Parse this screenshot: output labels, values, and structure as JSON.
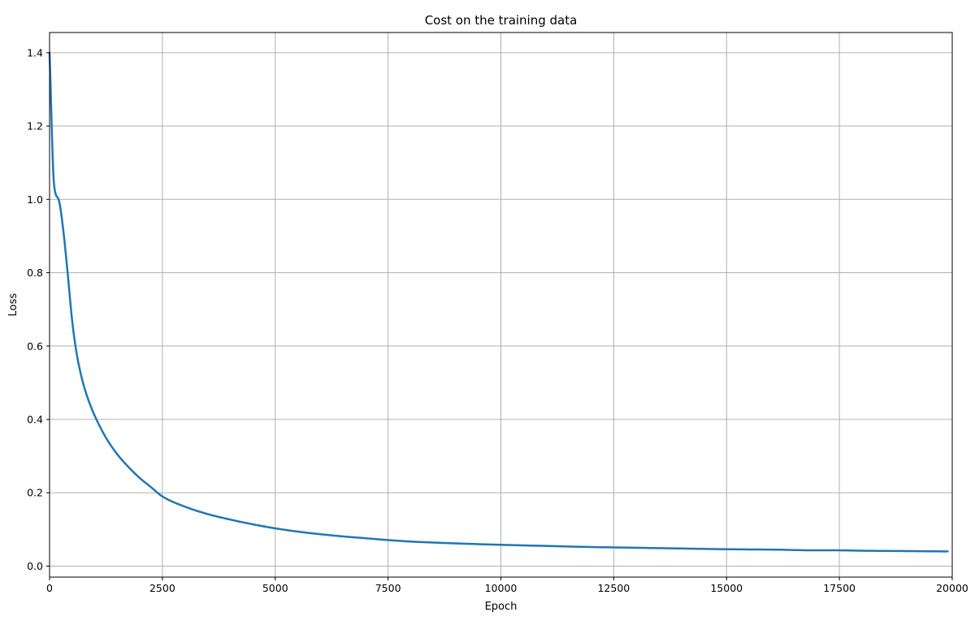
{
  "chart_data": {
    "type": "line",
    "title": "Cost on the training data",
    "xlabel": "Epoch",
    "ylabel": "Loss",
    "xlim": [
      0,
      20000
    ],
    "ylim": [
      -0.03,
      1.455
    ],
    "x_ticks": [
      0,
      2500,
      5000,
      7500,
      10000,
      12500,
      15000,
      17500,
      20000
    ],
    "x_tick_labels": [
      "0",
      "2500",
      "5000",
      "7500",
      "10000",
      "12500",
      "15000",
      "17500",
      "20000"
    ],
    "y_ticks": [
      0.0,
      0.2,
      0.4,
      0.6,
      0.8,
      1.0,
      1.2,
      1.4
    ],
    "y_tick_labels": [
      "0.0",
      "0.2",
      "0.4",
      "0.6",
      "0.8",
      "1.0",
      "1.2",
      "1.4"
    ],
    "grid": true,
    "line_color": "#1f77b4",
    "grid_color": "#b0b0b0",
    "series": [
      {
        "x": [
          0,
          100,
          200,
          300,
          400,
          500,
          600,
          700,
          800,
          900,
          1000,
          1250,
          1500,
          1750,
          2000,
          2250,
          2500,
          3000,
          3500,
          4000,
          4500,
          5000,
          5500,
          6000,
          6500,
          7000,
          7500,
          8000,
          9000,
          10000,
          11000,
          12000,
          12500,
          13000,
          14000,
          15000,
          16000,
          17000,
          17500,
          18000,
          19000,
          19900
        ],
        "y": [
          1.4,
          1.04,
          1.0,
          0.92,
          0.8,
          0.67,
          0.58,
          0.52,
          0.475,
          0.44,
          0.41,
          0.35,
          0.305,
          0.27,
          0.24,
          0.215,
          0.19,
          0.162,
          0.142,
          0.127,
          0.114,
          0.103,
          0.094,
          0.087,
          0.081,
          0.076,
          0.071,
          0.067,
          0.062,
          0.058,
          0.055,
          0.052,
          0.051,
          0.05,
          0.048,
          0.046,
          0.045,
          0.043,
          0.043,
          0.042,
          0.041,
          0.04
        ]
      }
    ]
  }
}
